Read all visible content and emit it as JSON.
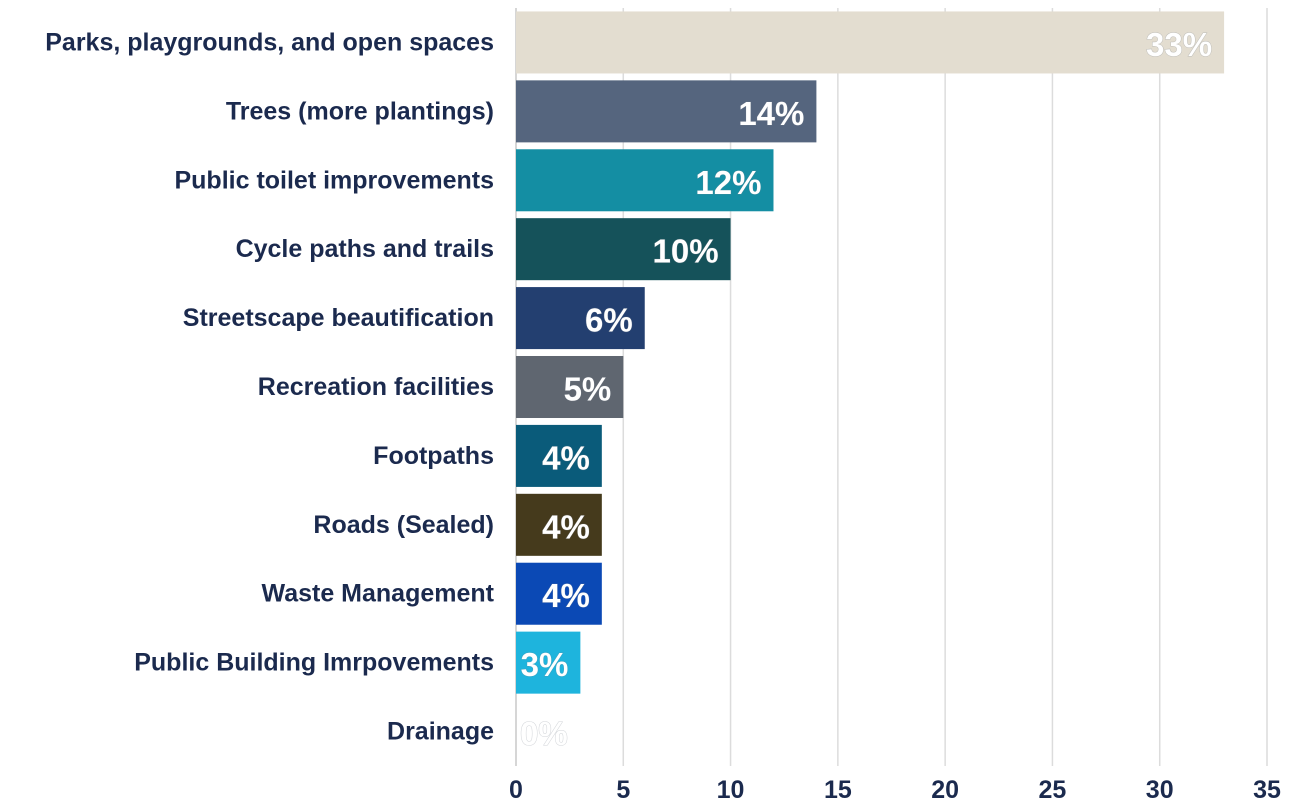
{
  "chart_data": {
    "type": "hbar",
    "categories": [
      "Parks, playgrounds, and open spaces",
      "Trees (more plantings)",
      "Public toilet improvements",
      "Cycle paths and trails",
      "Streetscape beautification",
      "Recreation facilities",
      "Footpaths",
      "Roads (Sealed)",
      "Waste Management",
      "Public Building Imrpovements",
      "Drainage"
    ],
    "values": [
      33,
      14,
      12,
      10,
      6,
      5,
      4,
      4,
      4,
      3,
      0
    ],
    "value_labels": [
      "33%",
      "14%",
      "12%",
      "10%",
      "6%",
      "5%",
      "4%",
      "4%",
      "4%",
      "3%",
      "0%"
    ],
    "colors": [
      "#e3ddd0",
      "#55657e",
      "#148ea3",
      "#15525a",
      "#233f70",
      "#5f6670",
      "#0a5b7a",
      "#453a1c",
      "#0b49b5",
      "#1eb4dd",
      "#c9d1d8"
    ],
    "xlim": [
      0,
      35
    ],
    "xticks": [
      0,
      5,
      10,
      15,
      20,
      25,
      30,
      35
    ],
    "grid": true
  }
}
